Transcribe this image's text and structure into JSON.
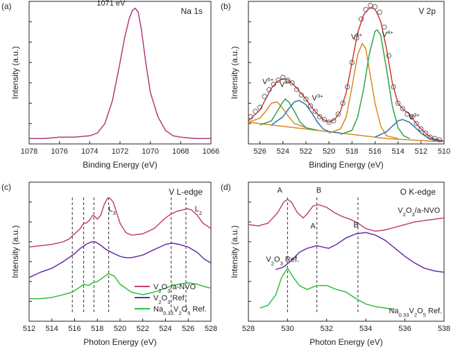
{
  "chart_data": [
    {
      "type": "line",
      "panel_label": "(a)",
      "title": "Na 1s",
      "xlabel": "Binding Energy (eV)",
      "ylabel": "Intensity (a.u.)",
      "xlim": [
        1078,
        1066
      ],
      "x_reversed": true,
      "x_ticks": [
        1078,
        1076,
        1074,
        1072,
        1070,
        1068,
        1066
      ],
      "ylim": [
        0,
        1.05
      ],
      "annotations": [
        {
          "text": "1071 eV",
          "x": 1072.6,
          "y": 1.02
        }
      ],
      "series": [
        {
          "color": "#b03a7c",
          "x": [
            1078,
            1077,
            1076,
            1075,
            1074,
            1073.5,
            1073,
            1072.5,
            1072,
            1071.7,
            1071.4,
            1071.2,
            1071,
            1070.8,
            1070.6,
            1070.3,
            1070,
            1069.5,
            1069,
            1068.5,
            1068,
            1067,
            1066
          ],
          "y": [
            0.04,
            0.04,
            0.05,
            0.05,
            0.06,
            0.08,
            0.15,
            0.32,
            0.6,
            0.78,
            0.92,
            0.98,
            1.0,
            0.97,
            0.85,
            0.6,
            0.38,
            0.2,
            0.1,
            0.06,
            0.05,
            0.04,
            0.04
          ]
        }
      ]
    },
    {
      "type": "line",
      "panel_label": "(b)",
      "title": "V 2p",
      "xlabel": "Binding Energy (eV)",
      "ylabel": "Intensity (a.u.)",
      "xlim": [
        527,
        510
      ],
      "x_reversed": true,
      "x_ticks": [
        526,
        524,
        522,
        520,
        518,
        516,
        514,
        512,
        510
      ],
      "ylim": [
        0,
        1.05
      ],
      "labels": [
        {
          "text": "V5+",
          "x": 525.3,
          "y": 0.44,
          "color": "#d6891e"
        },
        {
          "text": "V4+",
          "x": 523.8,
          "y": 0.42,
          "color": "#2aa34a"
        },
        {
          "text": "V3+",
          "x": 521.0,
          "y": 0.32,
          "color": "#2f6fb0"
        },
        {
          "text": "V5+",
          "x": 517.6,
          "y": 0.77,
          "color": "#d6891e"
        },
        {
          "text": "V4+",
          "x": 514.9,
          "y": 0.79,
          "color": "#2aa34a"
        },
        {
          "text": "V3+",
          "x": 512.6,
          "y": 0.18,
          "color": "#2f6fb0"
        }
      ],
      "series": [
        {
          "role": "background",
          "color": "#d6891e",
          "x": [
            527,
            525,
            523,
            521,
            519,
            518,
            517,
            516,
            515,
            514,
            513,
            512,
            511,
            510
          ],
          "y": [
            0.16,
            0.14,
            0.12,
            0.1,
            0.08,
            0.07,
            0.06,
            0.05,
            0.04,
            0.035,
            0.03,
            0.025,
            0.02,
            0.02
          ]
        },
        {
          "role": "V5+ 2p1/2",
          "color": "#d6891e",
          "x": [
            527,
            526,
            525.5,
            525,
            524.5,
            524,
            523.5,
            523,
            522
          ],
          "y": [
            0.16,
            0.19,
            0.24,
            0.3,
            0.31,
            0.26,
            0.2,
            0.15,
            0.12
          ]
        },
        {
          "role": "V4+ 2p1/2",
          "color": "#2aa34a",
          "x": [
            526,
            525,
            524.5,
            524,
            523.8,
            523.5,
            523,
            522.5,
            522,
            521
          ],
          "y": [
            0.14,
            0.17,
            0.24,
            0.31,
            0.33,
            0.31,
            0.24,
            0.16,
            0.12,
            0.1
          ]
        },
        {
          "role": "V3+ 2p1/2",
          "color": "#2f6fb0",
          "x": [
            525,
            524,
            523.5,
            523,
            522.6,
            522,
            521.5,
            521,
            520.5,
            520,
            519
          ],
          "y": [
            0.14,
            0.2,
            0.26,
            0.31,
            0.32,
            0.29,
            0.23,
            0.16,
            0.11,
            0.09,
            0.08
          ]
        },
        {
          "role": "V5+ 2p3/2",
          "color": "#d6891e",
          "x": [
            520,
            519,
            518.5,
            518,
            517.5,
            517.1,
            516.8,
            516.5,
            516,
            515.5,
            515,
            514
          ],
          "y": [
            0.08,
            0.11,
            0.2,
            0.42,
            0.66,
            0.74,
            0.7,
            0.55,
            0.3,
            0.13,
            0.06,
            0.04
          ]
        },
        {
          "role": "V4+ 2p3/2",
          "color": "#2aa34a",
          "x": [
            519,
            518,
            517.5,
            517,
            516.5,
            516,
            515.8,
            515.5,
            515,
            514.5,
            514,
            513.5,
            513
          ],
          "y": [
            0.07,
            0.1,
            0.2,
            0.4,
            0.66,
            0.83,
            0.84,
            0.8,
            0.55,
            0.28,
            0.12,
            0.06,
            0.04
          ]
        },
        {
          "role": "V3+ 2p3/2",
          "color": "#2f6fb0",
          "x": [
            516,
            515,
            514.5,
            514,
            513.6,
            513,
            512.5,
            512,
            511.5,
            511,
            510
          ],
          "y": [
            0.05,
            0.09,
            0.13,
            0.17,
            0.18,
            0.16,
            0.12,
            0.08,
            0.05,
            0.03,
            0.02
          ]
        },
        {
          "role": "envelope",
          "color": "#d02a2a",
          "x": [
            527,
            526,
            525.5,
            525,
            524.5,
            524,
            523.5,
            523,
            522.5,
            522,
            521.5,
            521,
            520.5,
            520,
            519.5,
            519,
            518.5,
            518,
            517.5,
            517,
            516.5,
            516.2,
            516,
            515.8,
            515.5,
            515,
            514.5,
            514,
            513.5,
            513,
            512.5,
            512,
            511.5,
            511,
            510.5,
            510
          ],
          "y": [
            0.17,
            0.25,
            0.33,
            0.41,
            0.46,
            0.48,
            0.47,
            0.43,
            0.38,
            0.33,
            0.27,
            0.22,
            0.18,
            0.16,
            0.18,
            0.24,
            0.38,
            0.6,
            0.82,
            0.95,
            1.0,
            1.0,
            0.99,
            0.96,
            0.9,
            0.7,
            0.45,
            0.3,
            0.25,
            0.22,
            0.16,
            0.11,
            0.07,
            0.04,
            0.03,
            0.02
          ]
        },
        {
          "role": "raw data",
          "marker": "circle",
          "color": "#555555",
          "x": [
            526.8,
            526.4,
            526,
            525.6,
            525.2,
            524.8,
            524.4,
            524,
            523.6,
            523.2,
            522.8,
            522.4,
            522,
            521.6,
            521.2,
            520.8,
            520.4,
            520,
            519.6,
            519.2,
            518.8,
            518.4,
            518,
            517.6,
            517.2,
            516.8,
            516.4,
            516,
            515.6,
            515.2,
            514.8,
            514.4,
            514,
            513.6,
            513.2,
            512.8,
            512.4,
            512,
            511.6,
            511.2,
            510.8,
            510.4
          ],
          "y": [
            0.2,
            0.24,
            0.27,
            0.35,
            0.4,
            0.44,
            0.47,
            0.49,
            0.47,
            0.45,
            0.4,
            0.36,
            0.33,
            0.28,
            0.24,
            0.2,
            0.18,
            0.16,
            0.17,
            0.22,
            0.3,
            0.42,
            0.6,
            0.78,
            0.92,
            0.99,
            1.02,
            1.01,
            0.97,
            0.86,
            0.65,
            0.42,
            0.3,
            0.26,
            0.22,
            0.2,
            0.15,
            0.11,
            0.08,
            0.05,
            0.04,
            0.03
          ]
        }
      ]
    },
    {
      "type": "line",
      "panel_label": "(c)",
      "title": "V L-edge",
      "xlabel": "Photon Energy (eV)",
      "ylabel": "Intensity (a.u.)",
      "xlim": [
        512,
        528
      ],
      "x_ticks": [
        512,
        514,
        516,
        518,
        520,
        522,
        524,
        526,
        528
      ],
      "ylim": [
        0,
        1.05
      ],
      "peak_labels": [
        {
          "text": "L3",
          "x": 519.3
        },
        {
          "text": "L2",
          "x": 526.9
        }
      ],
      "dashed_lines_x": [
        515.8,
        516.8,
        517.7,
        519.0,
        524.5,
        525.8
      ],
      "legend": {
        "position": "bottom-right",
        "entries": [
          {
            "label": "V2O3/a-NVO",
            "color": "#c2407e"
          },
          {
            "label": "V2O3 Ref.",
            "color": "#6a2aa6"
          },
          {
            "label": "Na0.33V2O5 Ref.",
            "color": "#2fbf3a"
          }
        ]
      },
      "series": [
        {
          "name": "V2O3/a-NVO",
          "color": "#c2407e",
          "x": [
            512,
            513,
            514,
            515,
            515.5,
            516,
            516.5,
            516.8,
            517,
            517.3,
            517.6,
            517.8,
            518,
            518.3,
            518.6,
            518.9,
            519.1,
            519.4,
            519.7,
            520,
            520.5,
            521,
            522,
            523,
            523.5,
            524,
            524.5,
            525,
            525.5,
            525.9,
            526.3,
            526.8,
            527.3,
            528
          ],
          "y": [
            0.56,
            0.57,
            0.58,
            0.6,
            0.62,
            0.66,
            0.7,
            0.74,
            0.74,
            0.76,
            0.8,
            0.79,
            0.77,
            0.8,
            0.88,
            0.93,
            0.93,
            0.9,
            0.82,
            0.74,
            0.67,
            0.65,
            0.66,
            0.7,
            0.74,
            0.78,
            0.81,
            0.83,
            0.84,
            0.85,
            0.84,
            0.8,
            0.74,
            0.7
          ]
        },
        {
          "name": "V2O3 Ref.",
          "color": "#6a2aa6",
          "x": [
            512,
            513,
            514,
            515,
            516,
            516.5,
            517,
            517.5,
            517.8,
            518.2,
            518.8,
            519.5,
            520,
            520.5,
            521,
            522,
            523,
            524,
            524.6,
            525.2,
            526,
            526.8,
            527.4,
            528
          ],
          "y": [
            0.33,
            0.37,
            0.4,
            0.45,
            0.51,
            0.55,
            0.58,
            0.6,
            0.6,
            0.58,
            0.54,
            0.51,
            0.49,
            0.48,
            0.48,
            0.5,
            0.54,
            0.58,
            0.59,
            0.58,
            0.56,
            0.52,
            0.47,
            0.44
          ]
        },
        {
          "name": "Na0.33V2O5 Ref.",
          "color": "#2fbf3a",
          "x": [
            512,
            513,
            514,
            515,
            515.8,
            516.5,
            516.8,
            517.2,
            517.6,
            518,
            518.5,
            519,
            519.5,
            520,
            521,
            522,
            523,
            524,
            524.6,
            525.2,
            526,
            526.8,
            527.5,
            528
          ],
          "y": [
            0.17,
            0.17,
            0.18,
            0.2,
            0.22,
            0.26,
            0.28,
            0.27,
            0.29,
            0.3,
            0.33,
            0.36,
            0.34,
            0.28,
            0.22,
            0.2,
            0.22,
            0.25,
            0.27,
            0.28,
            0.29,
            0.28,
            0.26,
            0.25
          ]
        }
      ]
    },
    {
      "type": "line",
      "panel_label": "(d)",
      "title": "O K-edge",
      "xlabel": "Photon Energy (eV)",
      "ylabel": "Intensity (a.u.)",
      "xlim": [
        528,
        538
      ],
      "x_ticks": [
        528,
        530,
        532,
        534,
        536,
        538
      ],
      "ylim": [
        0,
        1.05
      ],
      "dashed_lines_x": [
        530.0,
        531.5,
        533.6
      ],
      "peak_labels": [
        {
          "text": "A",
          "x": 529.6,
          "y": 0.97
        },
        {
          "text": "B",
          "x": 531.6,
          "y": 0.97
        },
        {
          "text": "A",
          "x": 531.3,
          "y": 0.7
        },
        {
          "text": "B",
          "x": 533.5,
          "y": 0.71
        }
      ],
      "series": [
        {
          "name": "V2O3/a-NVO",
          "color": "#c2407e",
          "x": [
            528,
            528.5,
            529,
            529.5,
            529.8,
            530,
            530.2,
            530.5,
            530.8,
            531,
            531.3,
            531.6,
            532,
            532.4,
            532.8,
            533.2,
            533.6,
            534,
            534.5,
            535,
            535.5,
            536,
            536.5,
            537,
            537.5,
            538
          ],
          "y": [
            0.73,
            0.72,
            0.74,
            0.82,
            0.9,
            0.92,
            0.9,
            0.82,
            0.78,
            0.81,
            0.87,
            0.88,
            0.86,
            0.82,
            0.79,
            0.77,
            0.74,
            0.7,
            0.68,
            0.69,
            0.71,
            0.73,
            0.75,
            0.76,
            0.77,
            0.78
          ]
        },
        {
          "name": "V2O3 Ref.",
          "color": "#6a2aa6",
          "x": [
            529.4,
            529.8,
            530.2,
            530.6,
            531,
            531.5,
            531.8,
            532.1,
            532.5,
            533,
            533.5,
            534,
            534.5,
            535,
            535.5,
            536,
            536.5,
            537,
            537.5,
            538
          ],
          "y": [
            0.39,
            0.41,
            0.46,
            0.52,
            0.55,
            0.57,
            0.56,
            0.55,
            0.58,
            0.63,
            0.66,
            0.67,
            0.65,
            0.61,
            0.55,
            0.49,
            0.44,
            0.4,
            0.38,
            0.37
          ]
        },
        {
          "name": "Na0.33V2O5 Ref.",
          "color": "#2fbf3a",
          "x": [
            528.6,
            529,
            529.4,
            529.7,
            530,
            530.3,
            530.6,
            531,
            531.5,
            532,
            532.5,
            533,
            533.5,
            534,
            534.5,
            535,
            535.4
          ],
          "y": [
            0.1,
            0.12,
            0.2,
            0.33,
            0.4,
            0.33,
            0.27,
            0.24,
            0.27,
            0.27,
            0.24,
            0.22,
            0.17,
            0.13,
            0.11,
            0.1,
            0.09
          ]
        }
      ],
      "inline_labels": [
        {
          "text": "V2O3/a-NVO",
          "color": "#c2407e",
          "x": 537.8,
          "y": 0.82
        },
        {
          "text": "V2O3 Ref.",
          "color": "#6a2aa6",
          "x": 528.9,
          "y": 0.45
        },
        {
          "text": "Na0.33V2O5 Ref.",
          "color": "#2fbf3a",
          "x": 537.9,
          "y": 0.06
        }
      ]
    }
  ]
}
